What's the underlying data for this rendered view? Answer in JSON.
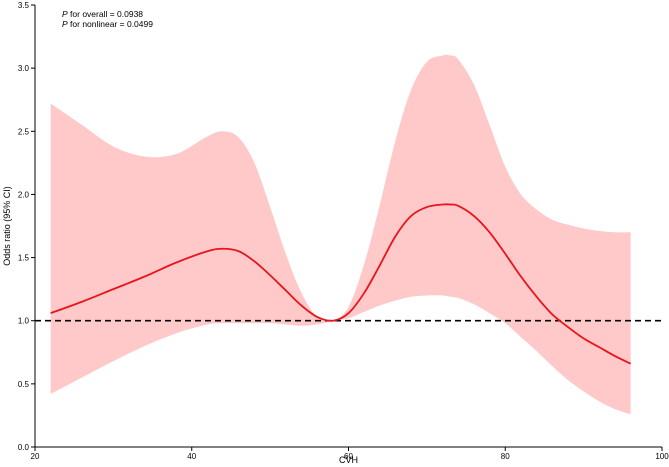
{
  "chart_data": {
    "type": "line",
    "xlabel": "CVH",
    "ylabel": "Odds ratio (95% CI)",
    "xlim": [
      20,
      100
    ],
    "ylim": [
      0.0,
      3.5
    ],
    "xticks": [
      20,
      40,
      60,
      80,
      100
    ],
    "yticks": [
      "0.0",
      "0.5",
      "1.0",
      "1.5",
      "2.0",
      "2.5",
      "3.0",
      "3.5"
    ],
    "annotations": [
      {
        "italic": "P",
        "text": " for overall = 0.0938"
      },
      {
        "italic": "P",
        "text": " for nonlinear = 0.0499"
      }
    ],
    "reference_line": {
      "y": 1.0,
      "style": "dashed",
      "color": "#000000"
    },
    "line_color": "#e8141b",
    "band_color": "#ffc9c9",
    "series": [
      {
        "x": [
          22,
          26,
          30,
          34,
          38,
          42,
          44,
          46,
          48,
          50,
          52,
          54,
          56,
          58,
          60,
          62,
          64,
          66,
          68,
          70,
          72,
          73,
          74,
          76,
          78,
          80,
          82,
          84,
          86,
          88,
          90,
          92,
          94,
          96
        ],
        "y": [
          1.06,
          1.15,
          1.25,
          1.35,
          1.46,
          1.55,
          1.57,
          1.55,
          1.47,
          1.36,
          1.24,
          1.12,
          1.03,
          1.0,
          1.06,
          1.22,
          1.44,
          1.67,
          1.83,
          1.9,
          1.92,
          1.92,
          1.91,
          1.83,
          1.7,
          1.53,
          1.35,
          1.19,
          1.05,
          0.95,
          0.86,
          0.79,
          0.72,
          0.66
        ],
        "lower": [
          0.42,
          0.55,
          0.68,
          0.8,
          0.9,
          0.97,
          0.98,
          0.98,
          0.98,
          0.98,
          0.97,
          0.96,
          0.97,
          1.0,
          1.02,
          1.07,
          1.12,
          1.16,
          1.19,
          1.2,
          1.2,
          1.19,
          1.18,
          1.13,
          1.06,
          0.98,
          0.87,
          0.76,
          0.64,
          0.53,
          0.44,
          0.36,
          0.3,
          0.26
        ],
        "upper": [
          2.72,
          2.55,
          2.38,
          2.3,
          2.32,
          2.46,
          2.5,
          2.45,
          2.25,
          1.9,
          1.53,
          1.22,
          1.03,
          1.0,
          1.11,
          1.45,
          1.92,
          2.43,
          2.83,
          3.05,
          3.1,
          3.1,
          3.07,
          2.87,
          2.55,
          2.22,
          2.0,
          1.88,
          1.8,
          1.76,
          1.73,
          1.71,
          1.7,
          1.7
        ]
      }
    ]
  }
}
